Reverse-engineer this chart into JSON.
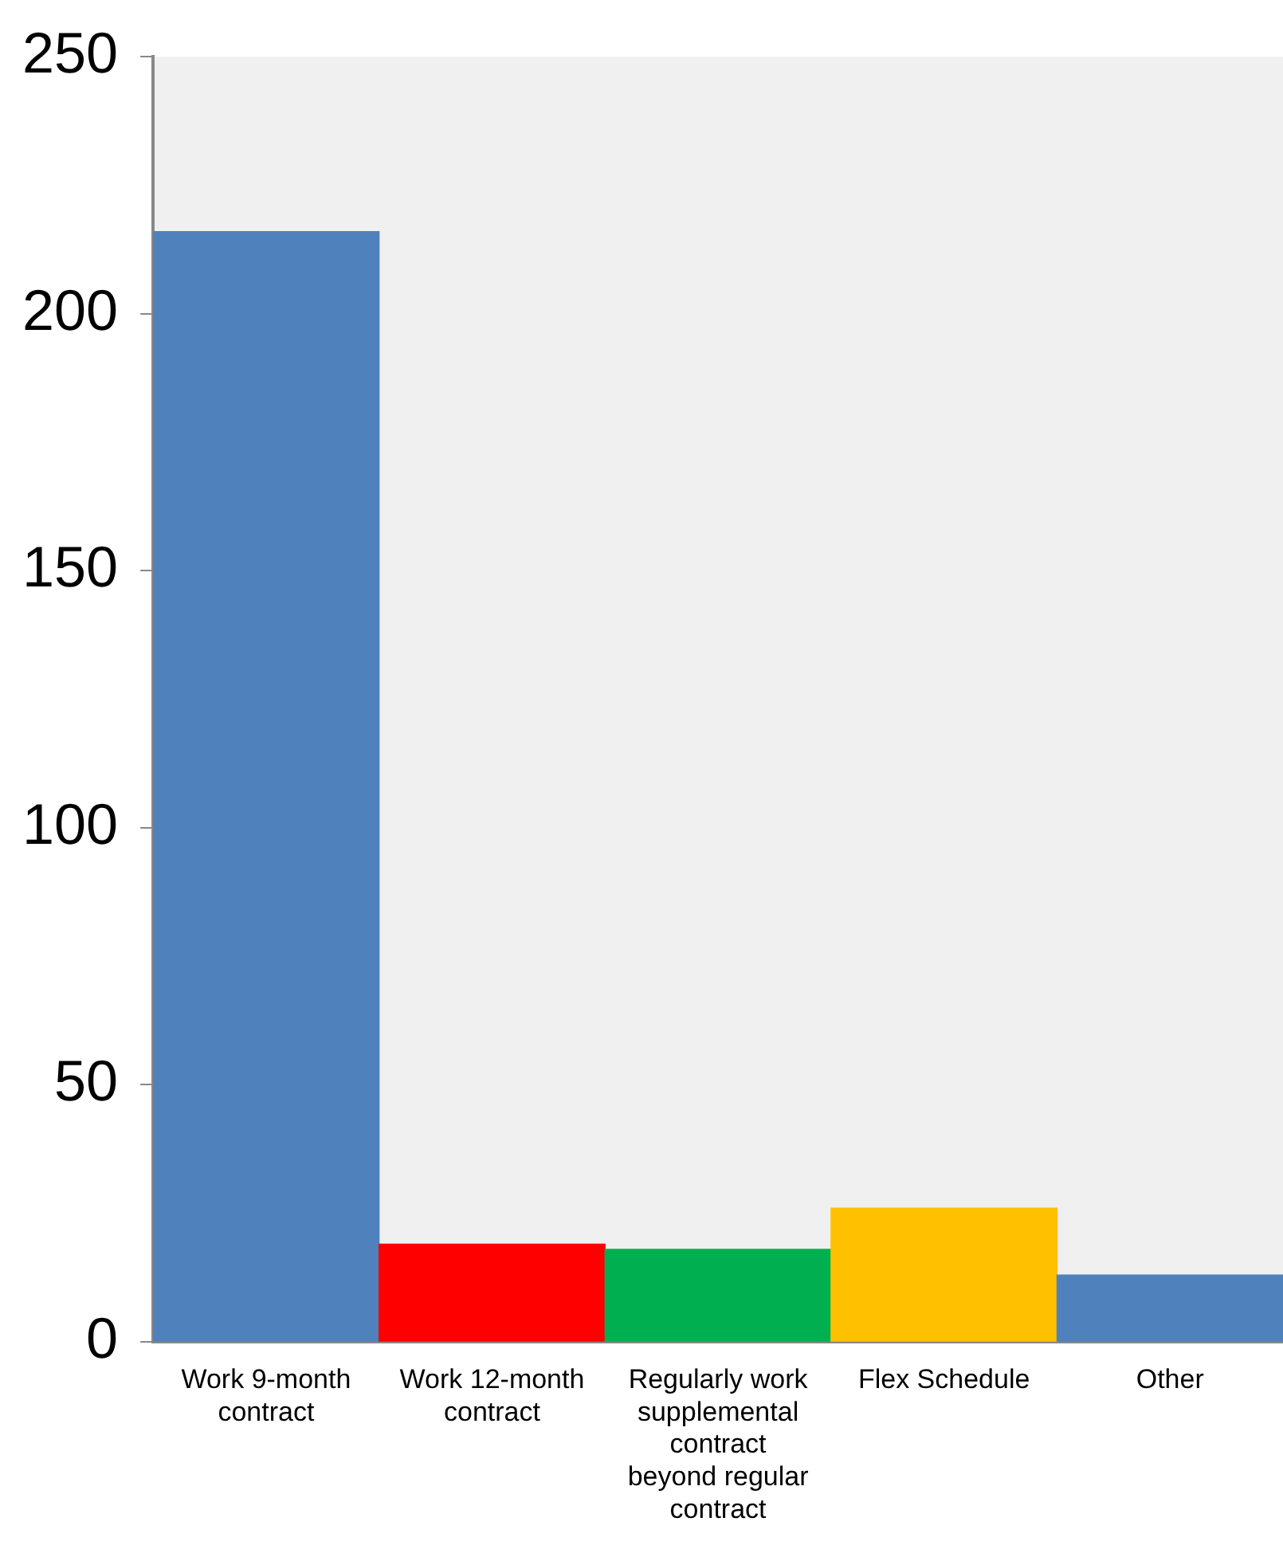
{
  "chart_data": {
    "type": "bar",
    "categories": [
      "Work 9-month contract",
      "Work 12-month contract",
      "Regularly work supplemental contract beyond regular contract",
      "Flex Schedule",
      "Other"
    ],
    "values": [
      216,
      19,
      18,
      26,
      13
    ],
    "colors": [
      "#4f81bd",
      "#ff0000",
      "#00b050",
      "#ffc000",
      "#4f81bd"
    ],
    "ylim": [
      0,
      250
    ],
    "yticks": [
      0,
      50,
      100,
      150,
      200,
      250
    ],
    "grid": false,
    "legend": false
  }
}
